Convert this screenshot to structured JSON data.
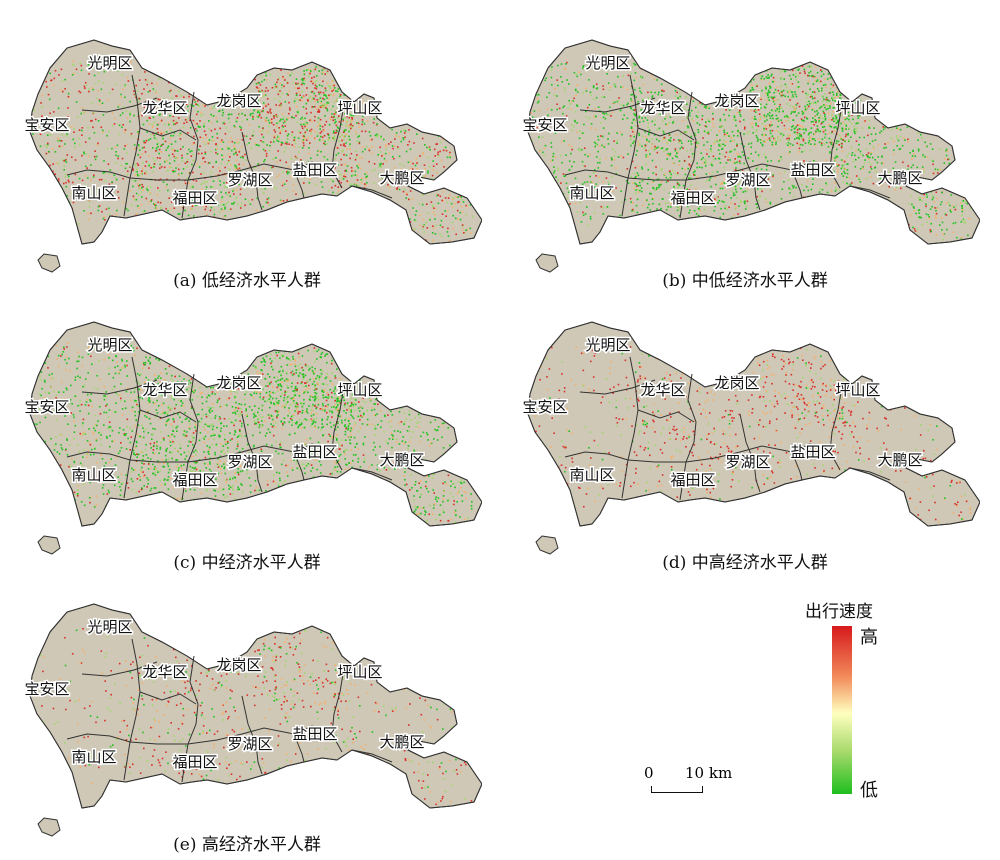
{
  "panels": [
    {
      "caption": "(a) 低经济水平人群",
      "pattern": "mixed"
    },
    {
      "caption": "(b) 中低经济水平人群",
      "pattern": "green"
    },
    {
      "caption": "(c) 中经济水平人群",
      "pattern": "green"
    },
    {
      "caption": "(d) 中高经济水平人群",
      "pattern": "sparse-red"
    },
    {
      "caption": "(e) 高经济水平人群",
      "pattern": "sparse-mixed"
    }
  ],
  "districts": [
    "光明区",
    "宝安区",
    "龙华区",
    "龙岗区",
    "坪山区",
    "南山区",
    "福田区",
    "罗湖区",
    "盐田区",
    "大鹏区"
  ],
  "legend": {
    "title": "出行速度",
    "high": "高",
    "low": "低",
    "colors": {
      "high": "#d7191c",
      "mid": "#ffffbf",
      "low": "#1fbf1f"
    }
  },
  "scale": {
    "start": "0",
    "end": "10 km"
  },
  "colors": {
    "land": "#cfc8b6",
    "boundary": "#333333",
    "sea": "#ffffff"
  }
}
